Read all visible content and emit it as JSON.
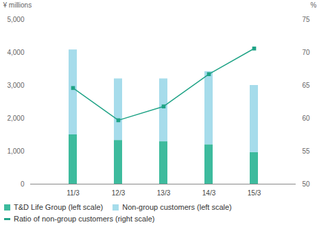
{
  "chart_data": {
    "type": "bar",
    "stacked": true,
    "categories": [
      "11/3",
      "12/3",
      "13/3",
      "14/3",
      "15/3"
    ],
    "series": [
      {
        "name": "T&D Life Group (left scale)",
        "color": "#3dbb9d",
        "values": [
          1500,
          1330,
          1290,
          1200,
          960
        ]
      },
      {
        "name": "Non-group customers (left scale)",
        "color": "#a6dceb",
        "values": [
          2580,
          1870,
          1910,
          2220,
          2040
        ]
      },
      {
        "name": "Ratio of non-group customers (right scale)",
        "type": "line",
        "axis": "y2",
        "color": "#1fa386",
        "marker": "square",
        "values": [
          64.6,
          59.7,
          61.8,
          66.7,
          70.6
        ]
      }
    ],
    "ylabel": "¥ millions",
    "y2label": "%",
    "ylim": [
      0,
      5000
    ],
    "yticks": [
      0,
      {
        "value": 1000,
        "label": "1,000"
      },
      {
        "value": 2000,
        "label": "2,000"
      },
      {
        "value": 3000,
        "label": "3,000"
      },
      {
        "value": 4000,
        "label": "4,000"
      },
      {
        "value": 5000,
        "label": "5,000"
      }
    ],
    "y2lim": [
      50,
      75
    ],
    "y2ticks": [
      50,
      55,
      60,
      65,
      70,
      75
    ],
    "legend": "bottom"
  }
}
